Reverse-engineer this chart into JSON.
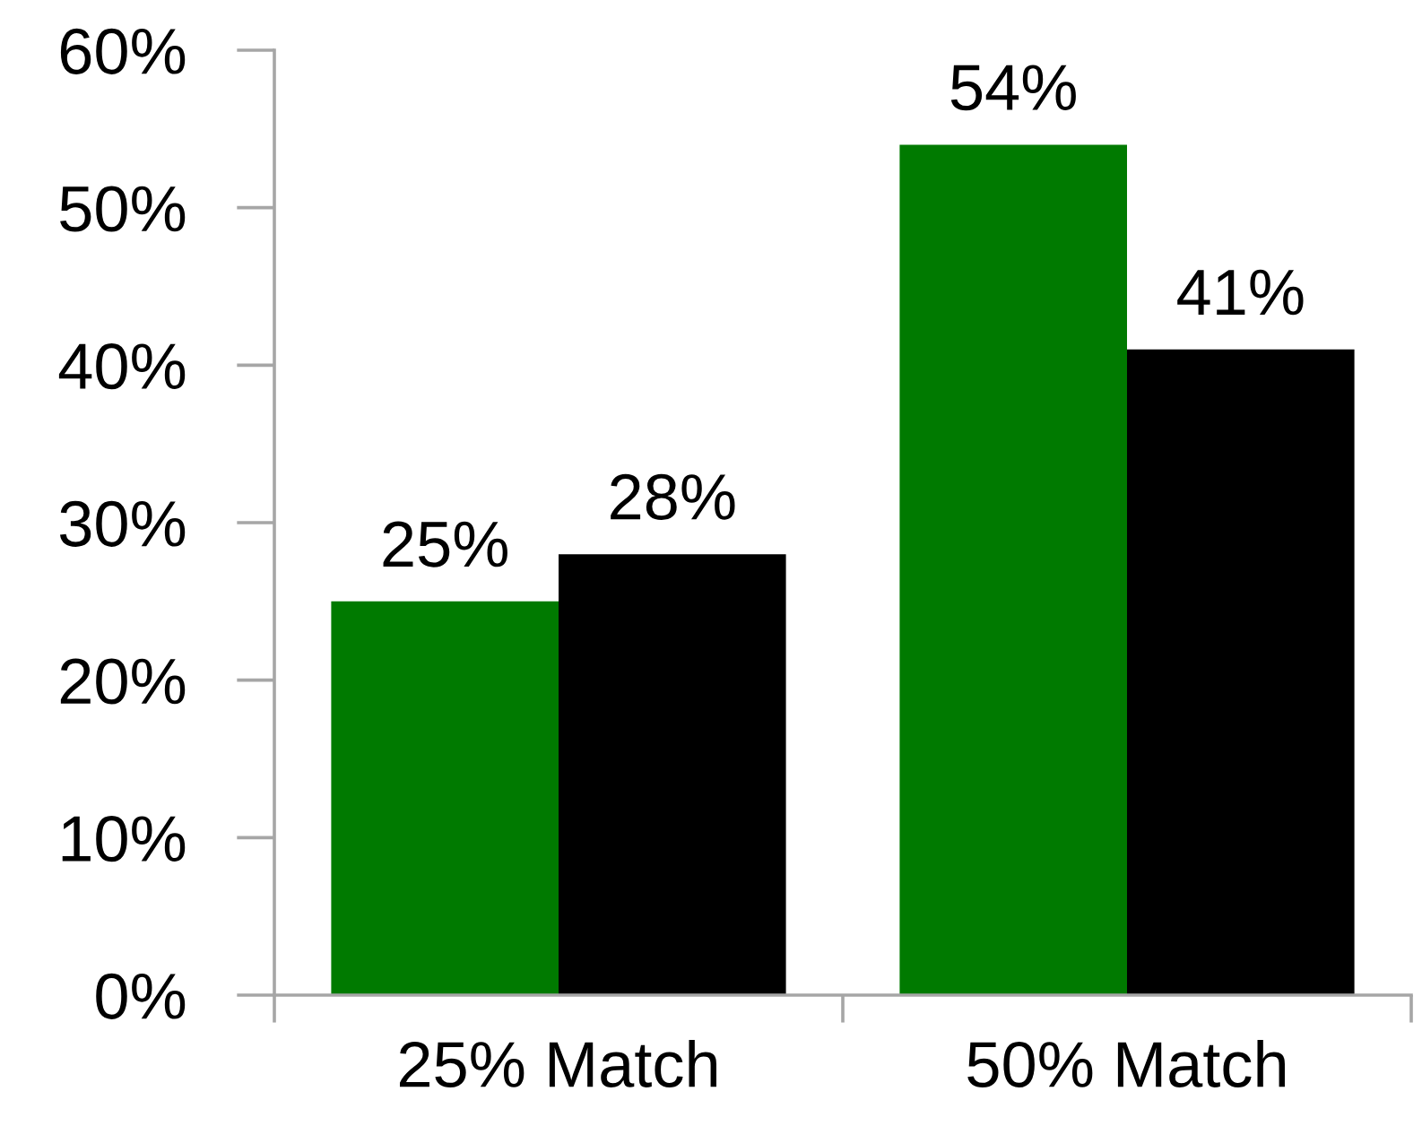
{
  "chart_data": {
    "type": "bar",
    "categories": [
      "25% Match",
      "50% Match"
    ],
    "series": [
      {
        "color": "#007a00",
        "values": [
          25,
          54
        ],
        "value_labels": [
          "25%",
          "54%"
        ]
      },
      {
        "color": "#000000",
        "values": [
          28,
          41
        ],
        "value_labels": [
          "28%",
          "41%"
        ]
      }
    ],
    "ylim": [
      0,
      60
    ],
    "yticks": [
      {
        "value": 0,
        "label": "0%"
      },
      {
        "value": 10,
        "label": "10%"
      },
      {
        "value": 20,
        "label": "20%"
      },
      {
        "value": 30,
        "label": "30%"
      },
      {
        "value": 40,
        "label": "40%"
      },
      {
        "value": 50,
        "label": "50%"
      },
      {
        "value": 60,
        "label": "60%"
      }
    ]
  }
}
